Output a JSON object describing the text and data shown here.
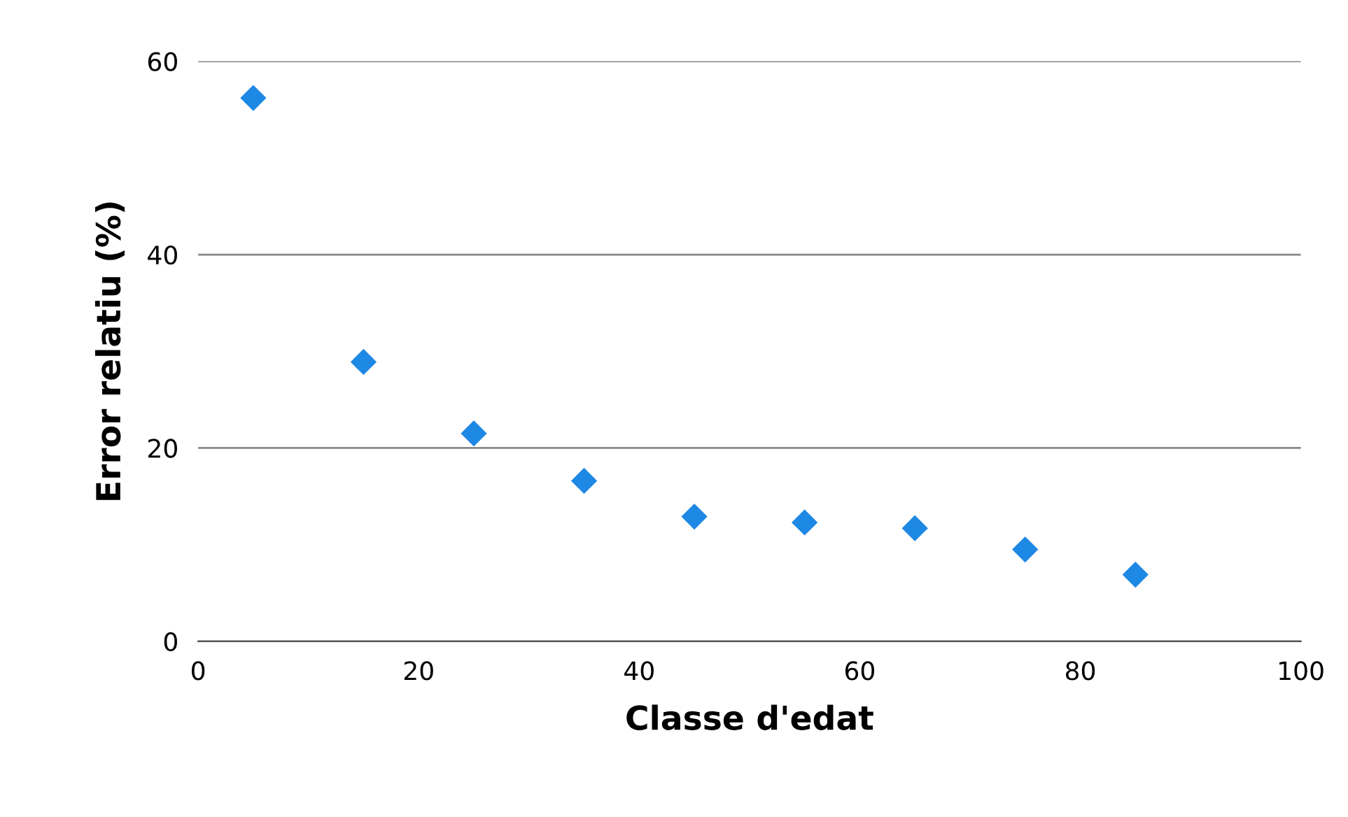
{
  "chart_data": {
    "type": "scatter",
    "xlabel": "Classe d'edat",
    "ylabel": "Error relatiu (%)",
    "x": [
      5,
      15,
      25,
      35,
      45,
      55,
      65,
      75,
      85
    ],
    "series": [
      {
        "color": "#1e88e5",
        "values": [
          56.2,
          28.9,
          21.5,
          16.6,
          12.9,
          12.3,
          11.7,
          9.5,
          6.9
        ]
      }
    ],
    "xlim": [
      0,
      100
    ],
    "xticks": [
      0,
      20,
      40,
      60,
      80,
      100
    ],
    "ylim": [
      0,
      60
    ],
    "yticks": [
      0,
      20,
      40,
      60
    ],
    "grid": "y",
    "marker": "diamond",
    "legend": false
  }
}
